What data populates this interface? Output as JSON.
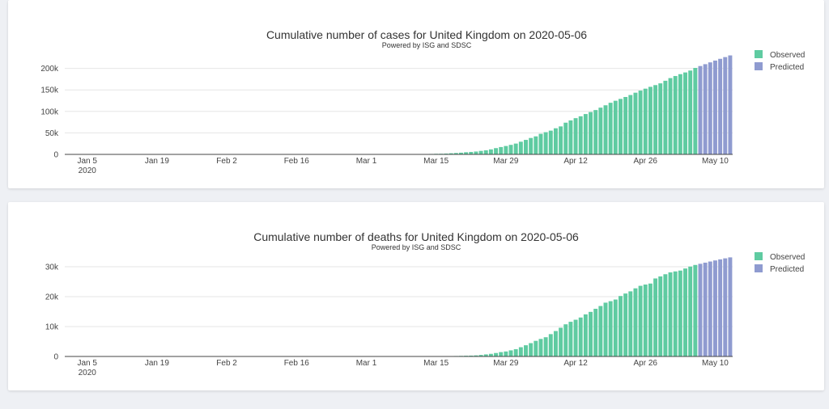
{
  "colors": {
    "observed": "#5fcba1",
    "predicted": "#8f9bd0"
  },
  "chart_data": [
    {
      "type": "bar",
      "title": "Cumulative number of cases for United Kingdom on 2020-05-06",
      "subtitle": "Powered by ISG and SDSC",
      "xlabel": "",
      "ylabel": "",
      "ylim": [
        0,
        235000
      ],
      "y_ticks": [
        0,
        50000,
        100000,
        150000,
        200000
      ],
      "y_tick_labels": [
        "0",
        "50k",
        "100k",
        "150k",
        "200k"
      ],
      "x_start": "2020-01-01",
      "x_end": "2020-05-13",
      "x_ticks": [
        {
          "date": "2020-01-05",
          "label": "Jan 5",
          "sub": "2020"
        },
        {
          "date": "2020-01-19",
          "label": "Jan 19"
        },
        {
          "date": "2020-02-02",
          "label": "Feb 2"
        },
        {
          "date": "2020-02-16",
          "label": "Feb 16"
        },
        {
          "date": "2020-03-01",
          "label": "Mar 1"
        },
        {
          "date": "2020-03-15",
          "label": "Mar 15"
        },
        {
          "date": "2020-03-29",
          "label": "Mar 29"
        },
        {
          "date": "2020-04-12",
          "label": "Apr 12"
        },
        {
          "date": "2020-04-26",
          "label": "Apr 26"
        },
        {
          "date": "2020-05-10",
          "label": "May 10"
        }
      ],
      "legend": [
        "Observed",
        "Predicted"
      ],
      "legend_position": "top-right",
      "series": [
        {
          "name": "Observed",
          "dates": [
            "2020-01-31",
            "2020-02-01",
            "2020-02-02",
            "2020-02-03",
            "2020-02-04",
            "2020-02-05",
            "2020-02-06",
            "2020-02-07",
            "2020-02-08",
            "2020-02-09",
            "2020-02-10",
            "2020-02-11",
            "2020-02-12",
            "2020-02-13",
            "2020-02-14",
            "2020-02-15",
            "2020-02-16",
            "2020-02-17",
            "2020-02-18",
            "2020-02-19",
            "2020-02-20",
            "2020-02-21",
            "2020-02-22",
            "2020-02-23",
            "2020-02-24",
            "2020-02-25",
            "2020-02-26",
            "2020-02-27",
            "2020-02-28",
            "2020-02-29",
            "2020-03-01",
            "2020-03-02",
            "2020-03-03",
            "2020-03-04",
            "2020-03-05",
            "2020-03-06",
            "2020-03-07",
            "2020-03-08",
            "2020-03-09",
            "2020-03-10",
            "2020-03-11",
            "2020-03-12",
            "2020-03-13",
            "2020-03-14",
            "2020-03-15",
            "2020-03-16",
            "2020-03-17",
            "2020-03-18",
            "2020-03-19",
            "2020-03-20",
            "2020-03-21",
            "2020-03-22",
            "2020-03-23",
            "2020-03-24",
            "2020-03-25",
            "2020-03-26",
            "2020-03-27",
            "2020-03-28",
            "2020-03-29",
            "2020-03-30",
            "2020-03-31",
            "2020-04-01",
            "2020-04-02",
            "2020-04-03",
            "2020-04-04",
            "2020-04-05",
            "2020-04-06",
            "2020-04-07",
            "2020-04-08",
            "2020-04-09",
            "2020-04-10",
            "2020-04-11",
            "2020-04-12",
            "2020-04-13",
            "2020-04-14",
            "2020-04-15",
            "2020-04-16",
            "2020-04-17",
            "2020-04-18",
            "2020-04-19",
            "2020-04-20",
            "2020-04-21",
            "2020-04-22",
            "2020-04-23",
            "2020-04-24",
            "2020-04-25",
            "2020-04-26",
            "2020-04-27",
            "2020-04-28",
            "2020-04-29",
            "2020-04-30",
            "2020-05-01",
            "2020-05-02",
            "2020-05-03",
            "2020-05-04",
            "2020-05-05",
            "2020-05-06"
          ],
          "values": [
            2,
            2,
            2,
            2,
            2,
            2,
            3,
            3,
            3,
            3,
            8,
            8,
            9,
            9,
            9,
            9,
            9,
            9,
            9,
            9,
            9,
            9,
            9,
            9,
            13,
            13,
            13,
            15,
            20,
            23,
            36,
            40,
            51,
            85,
            114,
            160,
            206,
            271,
            321,
            373,
            456,
            590,
            797,
            1061,
            1391,
            1543,
            1950,
            2626,
            3269,
            3983,
            5018,
            5683,
            6650,
            8077,
            9529,
            11658,
            14543,
            17089,
            19522,
            22141,
            25150,
            29474,
            33718,
            38168,
            41903,
            47806,
            51608,
            55242,
            60733,
            65077,
            73758,
            78991,
            84279,
            88621,
            93873,
            98476,
            103093,
            108692,
            114217,
            120067,
            124743,
            129044,
            133495,
            138078,
            143464,
            148377,
            152840,
            157149,
            161145,
            165221,
            171253,
            177454,
            182260,
            186599,
            190584,
            194990,
            201101
          ]
        },
        {
          "name": "Predicted",
          "dates": [
            "2020-05-07",
            "2020-05-08",
            "2020-05-09",
            "2020-05-10",
            "2020-05-11",
            "2020-05-12",
            "2020-05-13"
          ],
          "values": [
            205500,
            209800,
            214000,
            218200,
            222300,
            226300,
            230200
          ]
        }
      ]
    },
    {
      "type": "bar",
      "title": "Cumulative number of deaths for United Kingdom on 2020-05-06",
      "subtitle": "Powered by ISG and SDSC",
      "xlabel": "",
      "ylabel": "",
      "ylim": [
        0,
        33800
      ],
      "y_ticks": [
        0,
        10000,
        20000,
        30000
      ],
      "y_tick_labels": [
        "0",
        "10k",
        "20k",
        "30k"
      ],
      "x_start": "2020-01-01",
      "x_end": "2020-05-13",
      "x_ticks": [
        {
          "date": "2020-01-05",
          "label": "Jan 5",
          "sub": "2020"
        },
        {
          "date": "2020-01-19",
          "label": "Jan 19"
        },
        {
          "date": "2020-02-02",
          "label": "Feb 2"
        },
        {
          "date": "2020-02-16",
          "label": "Feb 16"
        },
        {
          "date": "2020-03-01",
          "label": "Mar 1"
        },
        {
          "date": "2020-03-15",
          "label": "Mar 15"
        },
        {
          "date": "2020-03-29",
          "label": "Mar 29"
        },
        {
          "date": "2020-04-12",
          "label": "Apr 12"
        },
        {
          "date": "2020-04-26",
          "label": "Apr 26"
        },
        {
          "date": "2020-05-10",
          "label": "May 10"
        }
      ],
      "legend": [
        "Observed",
        "Predicted"
      ],
      "legend_position": "top-right",
      "series": [
        {
          "name": "Observed",
          "dates": [
            "2020-03-06",
            "2020-03-07",
            "2020-03-08",
            "2020-03-09",
            "2020-03-10",
            "2020-03-11",
            "2020-03-12",
            "2020-03-13",
            "2020-03-14",
            "2020-03-15",
            "2020-03-16",
            "2020-03-17",
            "2020-03-18",
            "2020-03-19",
            "2020-03-20",
            "2020-03-21",
            "2020-03-22",
            "2020-03-23",
            "2020-03-24",
            "2020-03-25",
            "2020-03-26",
            "2020-03-27",
            "2020-03-28",
            "2020-03-29",
            "2020-03-30",
            "2020-03-31",
            "2020-04-01",
            "2020-04-02",
            "2020-04-03",
            "2020-04-04",
            "2020-04-05",
            "2020-04-06",
            "2020-04-07",
            "2020-04-08",
            "2020-04-09",
            "2020-04-10",
            "2020-04-11",
            "2020-04-12",
            "2020-04-13",
            "2020-04-14",
            "2020-04-15",
            "2020-04-16",
            "2020-04-17",
            "2020-04-18",
            "2020-04-19",
            "2020-04-20",
            "2020-04-21",
            "2020-04-22",
            "2020-04-23",
            "2020-04-24",
            "2020-04-25",
            "2020-04-26",
            "2020-04-27",
            "2020-04-28",
            "2020-04-29",
            "2020-04-30",
            "2020-05-01",
            "2020-05-02",
            "2020-05-03",
            "2020-05-04",
            "2020-05-05",
            "2020-05-06"
          ],
          "values": [
            1,
            2,
            2,
            3,
            7,
            7,
            9,
            10,
            28,
            43,
            65,
            81,
            115,
            158,
            194,
            250,
            285,
            359,
            508,
            694,
            877,
            1161,
            1455,
            1669,
            2043,
            2425,
            3095,
            3747,
            4461,
            5221,
            5865,
            6433,
            7471,
            8505,
            9608,
            10760,
            11599,
            12285,
            13029,
            14073,
            14915,
            15944,
            16879,
            17994,
            18492,
            19051,
            20223,
            21060,
            21787,
            22792,
            23635,
            24055,
            24393,
            26097,
            26771,
            27510,
            28131,
            28446,
            28734,
            29427,
            30076,
            30615
          ]
        },
        {
          "name": "Predicted",
          "dates": [
            "2020-05-07",
            "2020-05-08",
            "2020-05-09",
            "2020-05-10",
            "2020-05-11",
            "2020-05-12",
            "2020-05-13"
          ],
          "values": [
            31000,
            31380,
            31760,
            32120,
            32480,
            32820,
            33150
          ]
        }
      ]
    }
  ]
}
